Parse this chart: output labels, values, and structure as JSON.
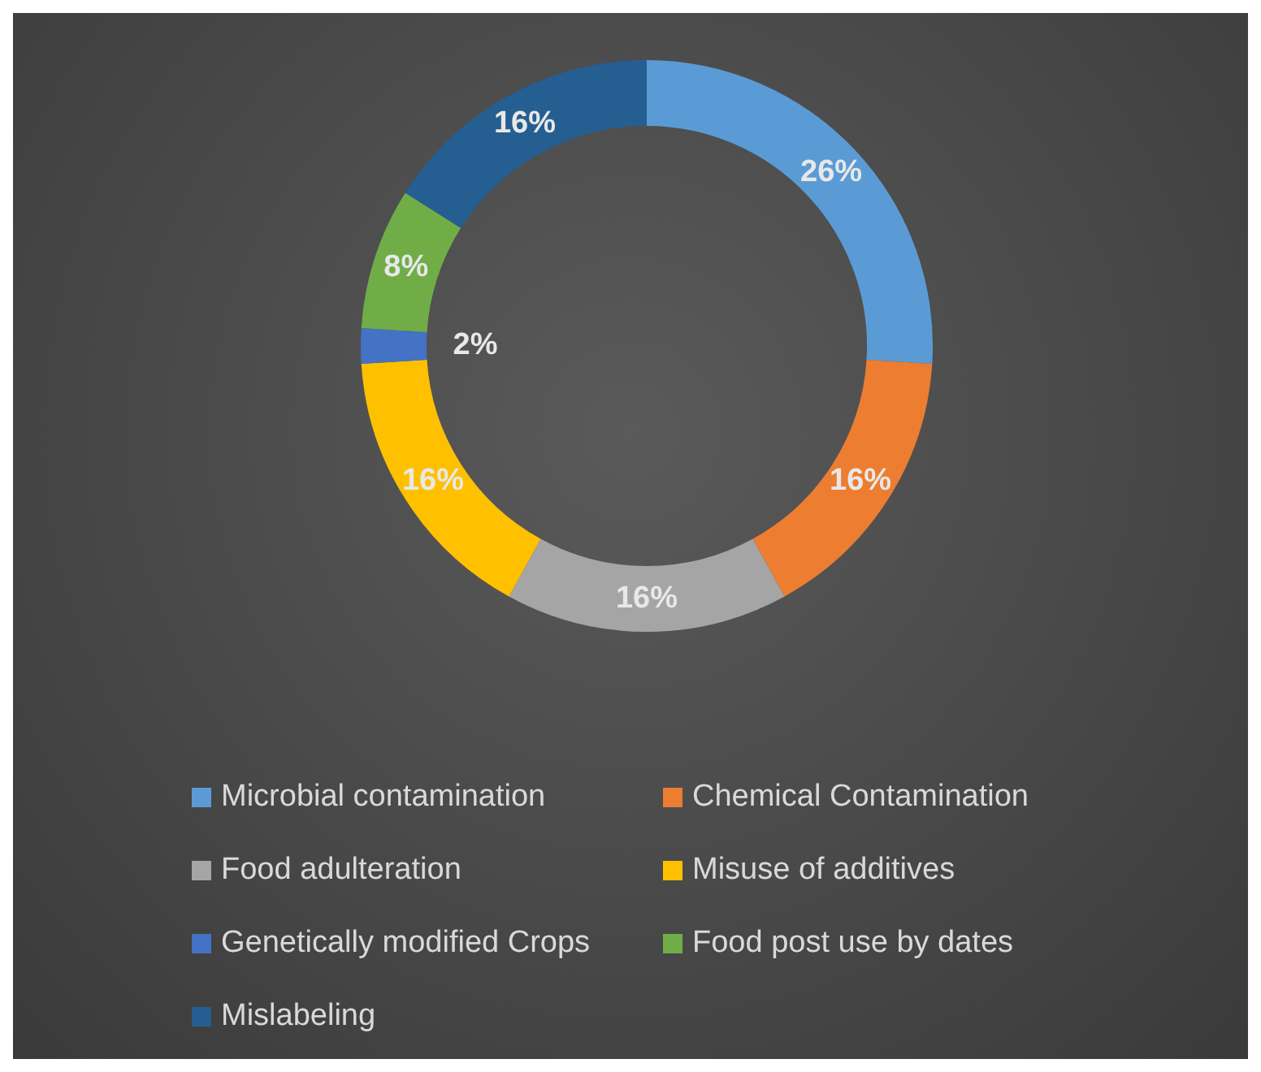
{
  "chart_data": {
    "type": "donut",
    "categories": [
      "Microbial contamination",
      "Chemical Contamination",
      "Food adulteration",
      "Misuse of additives",
      "Genetically modified Crops",
      "Food post use by dates",
      "Mislabeling"
    ],
    "values": [
      26,
      16,
      16,
      16,
      2,
      8,
      16
    ],
    "colors": [
      "#5b9bd5",
      "#ed7d31",
      "#a5a5a5",
      "#ffc000",
      "#4472c4",
      "#70ad47",
      "#255e91"
    ],
    "value_labels": [
      "26%",
      "16%",
      "16%",
      "16%",
      "2%",
      "8%",
      "16%"
    ],
    "legend": "bottom"
  }
}
